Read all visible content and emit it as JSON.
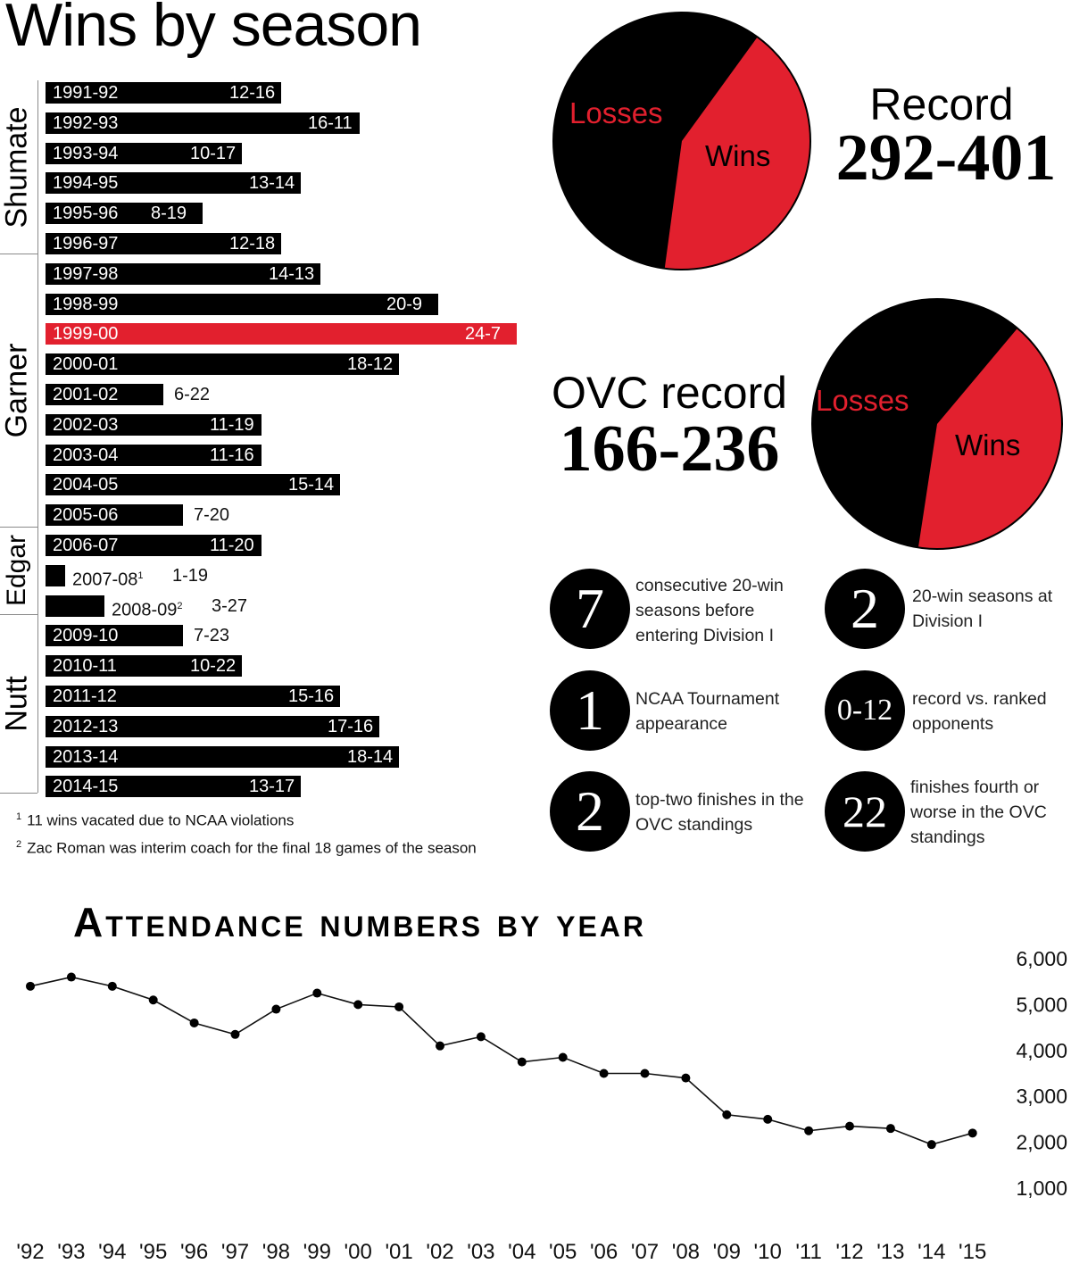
{
  "wins_section": {
    "title": "Wins by season",
    "coaches": [
      "Shumate",
      "Garner",
      "Edgar",
      "Nutt"
    ],
    "footnotes": [
      {
        "mark": "1",
        "text": "11 wins vacated due to NCAA violations"
      },
      {
        "mark": "2",
        "text": "Zac Roman was interim coach for the final 18 games of the season"
      }
    ]
  },
  "record": {
    "label": "Record",
    "value": "292-401",
    "pie_losses_label": "Losses",
    "pie_wins_label": "Wins"
  },
  "ovc_record": {
    "label": "OVC record",
    "value": "166-236",
    "pie_losses_label": "Losses",
    "pie_wins_label": "Wins"
  },
  "stats": [
    {
      "number": "7",
      "text": "consecutive 20-win seasons before entering Division I"
    },
    {
      "number": "2",
      "text": "20-win seasons at Division I"
    },
    {
      "number": "1",
      "text": "NCAA Tournament appearance"
    },
    {
      "number": "0-12",
      "text": "record vs. ranked opponents"
    },
    {
      "number": "2",
      "text": "top-two finishes in the OVC standings"
    },
    {
      "number": "22",
      "text": "finishes fourth or worse in the OVC standings"
    }
  ],
  "colors": {
    "accent": "#e2202e",
    "bar": "#000000"
  },
  "chart_data": [
    {
      "type": "bar",
      "orientation": "horizontal",
      "title": "Wins by season",
      "categories": [
        "1991-92",
        "1992-93",
        "1993-94",
        "1994-95",
        "1995-96",
        "1996-97",
        "1997-98",
        "1998-99",
        "1999-00",
        "2000-01",
        "2001-02",
        "2002-03",
        "2003-04",
        "2004-05",
        "2005-06",
        "2006-07",
        "2007-08",
        "2008-09",
        "2009-10",
        "2010-11",
        "2011-12",
        "2012-13",
        "2013-14",
        "2014-15"
      ],
      "category_marks": [
        "",
        "",
        "",
        "",
        "",
        "",
        "",
        "",
        "",
        "",
        "",
        "",
        "",
        "",
        "",
        "",
        "1",
        "2",
        "",
        "",
        "",
        "",
        "",
        ""
      ],
      "records": [
        "12-16",
        "16-11",
        "10-17",
        "13-14",
        "8-19",
        "12-18",
        "14-13",
        "20-9",
        "24-7",
        "18-12",
        "6-22",
        "11-19",
        "11-16",
        "15-14",
        "7-20",
        "11-20",
        "1-19",
        "3-27",
        "7-23",
        "10-22",
        "15-16",
        "17-16",
        "18-14",
        "13-17"
      ],
      "values": [
        12,
        16,
        10,
        13,
        8,
        12,
        14,
        20,
        24,
        18,
        6,
        11,
        11,
        15,
        7,
        11,
        1,
        3,
        7,
        10,
        15,
        17,
        18,
        13
      ],
      "coach_groups": [
        {
          "coach": "Shumate",
          "first": 0,
          "last": 5
        },
        {
          "coach": "Garner",
          "first": 6,
          "last": 14
        },
        {
          "coach": "Edgar",
          "first": 15,
          "last": 17
        },
        {
          "coach": "Nutt",
          "first": 18,
          "last": 23
        }
      ],
      "highlight_category": "1999-00"
    },
    {
      "type": "pie",
      "title": "Record 292-401",
      "labels": [
        "Losses",
        "Wins"
      ],
      "values": [
        401,
        292
      ]
    },
    {
      "type": "pie",
      "title": "OVC record 166-236",
      "labels": [
        "Losses",
        "Wins"
      ],
      "values": [
        236,
        166
      ]
    },
    {
      "type": "line",
      "title": "Attendance numbers by year",
      "x": [
        "'92",
        "'93",
        "'94",
        "'95",
        "'96",
        "'97",
        "'98",
        "'99",
        "'00",
        "'01",
        "'02",
        "'03",
        "'04",
        "'05",
        "'06",
        "'07",
        "'08",
        "'09",
        "'10",
        "'11",
        "'12",
        "'13",
        "'14",
        "'15"
      ],
      "values": [
        5400,
        5600,
        5400,
        5100,
        4600,
        4350,
        4900,
        5250,
        5000,
        4950,
        4100,
        4300,
        3750,
        3850,
        3500,
        3500,
        3400,
        2600,
        2500,
        2250,
        2350,
        2300,
        1950,
        2200
      ],
      "y_ticks": [
        "1,000",
        "2,000",
        "3,000",
        "4,000",
        "5,000",
        "6,000"
      ],
      "ylim": [
        1000,
        6000
      ],
      "grid": false
    }
  ]
}
